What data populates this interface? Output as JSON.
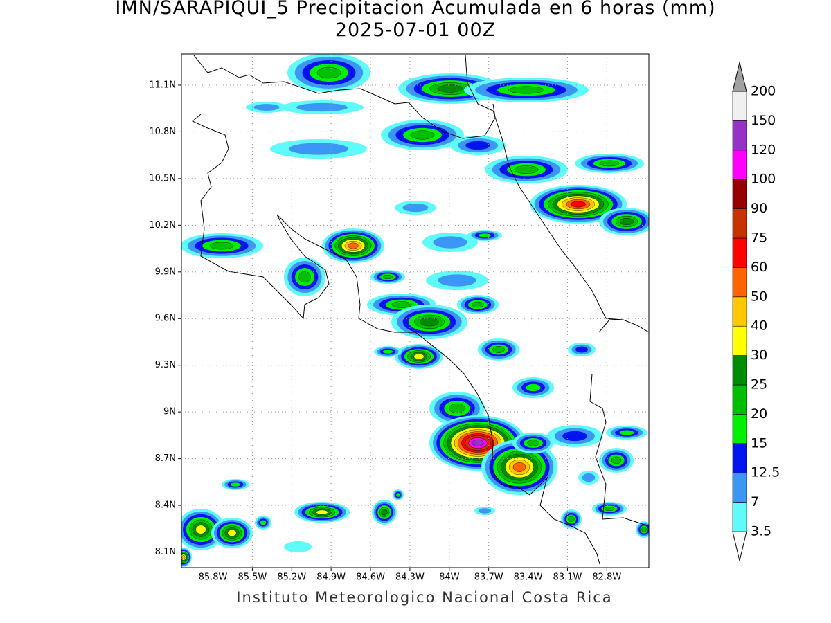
{
  "map": {
    "title": "IMN/SARAPIQUI_5 Precipitacion Acumulada en 6 horas (mm)",
    "subtitle": "2025-07-01 00Z",
    "footer": "Instituto Meteorologico Nacional Costa Rica",
    "xlim": [
      -86.04,
      -82.48
    ],
    "ylim": [
      8.0,
      11.3
    ],
    "xticks": [
      {
        "value": -85.8,
        "label": "85.8W"
      },
      {
        "value": -85.5,
        "label": "85.5W"
      },
      {
        "value": -85.2,
        "label": "85.2W"
      },
      {
        "value": -84.9,
        "label": "84.9W"
      },
      {
        "value": -84.6,
        "label": "84.6W"
      },
      {
        "value": -84.3,
        "label": "84.3W"
      },
      {
        "value": -84.0,
        "label": "84W"
      },
      {
        "value": -83.7,
        "label": "83.7W"
      },
      {
        "value": -83.4,
        "label": "83.4W"
      },
      {
        "value": -83.1,
        "label": "83.1W"
      },
      {
        "value": -82.8,
        "label": "82.8W"
      }
    ],
    "yticks": [
      {
        "value": 8.1,
        "label": "8.1N"
      },
      {
        "value": 8.4,
        "label": "8.4N"
      },
      {
        "value": 8.7,
        "label": "8.7N"
      },
      {
        "value": 9.0,
        "label": "9N"
      },
      {
        "value": 9.3,
        "label": "9.3N"
      },
      {
        "value": 9.6,
        "label": "9.6N"
      },
      {
        "value": 9.9,
        "label": "9.9N"
      },
      {
        "value": 10.2,
        "label": "10.2N"
      },
      {
        "value": 10.5,
        "label": "10.5N"
      },
      {
        "value": 10.8,
        "label": "10.8N"
      },
      {
        "value": 11.1,
        "label": "11.1N"
      }
    ],
    "grid": true,
    "colorbar": {
      "levels": [
        3.5,
        7,
        12.5,
        15,
        20,
        25,
        30,
        40,
        50,
        60,
        75,
        90,
        100,
        120,
        150,
        200
      ],
      "below_color": "#ffffff",
      "colors": [
        "#5ffafa",
        "#3c96f5",
        "#0014f0",
        "#00f000",
        "#00be00",
        "#008c00",
        "#ffff00",
        "#ffc800",
        "#ff6400",
        "#ff0000",
        "#c83200",
        "#960000",
        "#ff00ff",
        "#9632c8",
        "#f0f0f0"
      ],
      "above_color": "#a0a0a0"
    }
  }
}
